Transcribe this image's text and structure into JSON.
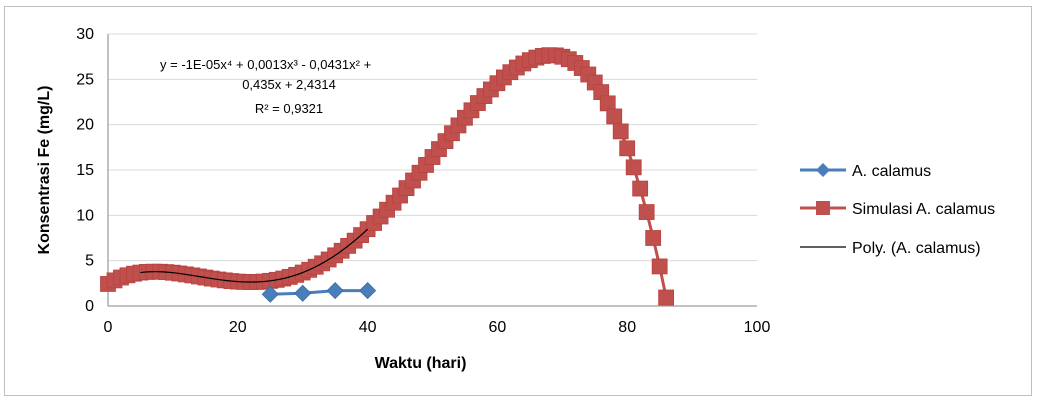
{
  "chart_data": {
    "type": "line",
    "xlabel": "Waktu (hari)",
    "ylabel": "Konsentrasi Fe (mg/L)",
    "xlim": [
      0,
      100
    ],
    "ylim": [
      0,
      30
    ],
    "x_ticks": [
      0,
      20,
      40,
      60,
      80,
      100
    ],
    "y_ticks": [
      0,
      5,
      10,
      15,
      20,
      25,
      30
    ],
    "grid": "horizontal",
    "legend_position": "right",
    "trendline_label": {
      "line1": "y = -1E-05x⁴ + 0,0013x³ - 0,0431x² +",
      "line2": "0,435x + 2,4314",
      "line3": "R² = 0,9321"
    },
    "trendline_coefficients": [
      -1e-05,
      0.0013,
      -0.0431,
      0.435,
      2.4314
    ],
    "trendline_range": [
      5,
      40
    ],
    "series": [
      {
        "name": "A. calamus",
        "color": "#4a7ebb",
        "marker": "diamond",
        "x": [
          25,
          30,
          35,
          40
        ],
        "y": [
          1.3,
          1.4,
          1.7,
          1.7
        ]
      },
      {
        "name": "Simulasi A. calamus",
        "color": "#c0504d",
        "marker": "square",
        "formula": "-1E-05x^4 + 0,0013x^3 - 0,0431x^2 + 0,435x + 2,4314",
        "x_range": [
          0,
          86
        ],
        "x_step": 1
      },
      {
        "name": "Poly. (A. calamus)",
        "color": "#000000",
        "marker": "none"
      }
    ]
  }
}
